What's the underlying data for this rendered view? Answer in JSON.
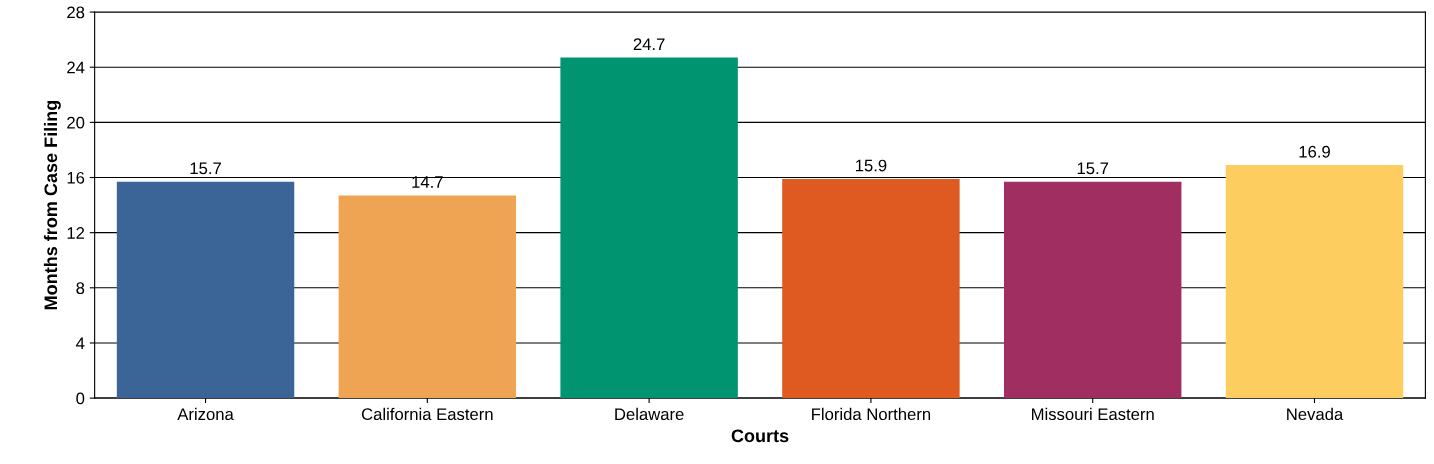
{
  "chart_data": {
    "type": "bar",
    "xlabel": "Courts",
    "ylabel": "Months from Case Filing",
    "categories": [
      "Arizona",
      "California Eastern",
      "Delaware",
      "Florida Northern",
      "Missouri Eastern",
      "Nevada"
    ],
    "values": [
      15.7,
      14.7,
      24.7,
      15.9,
      15.7,
      16.9
    ],
    "colors": [
      "#3b6597",
      "#efa454",
      "#009470",
      "#de5a20",
      "#a02e60",
      "#fdcd60"
    ],
    "ylim": [
      0,
      28
    ],
    "yticks": [
      0,
      4,
      8,
      12,
      16,
      20,
      24,
      28
    ],
    "grid": "y",
    "data_labels": true
  }
}
